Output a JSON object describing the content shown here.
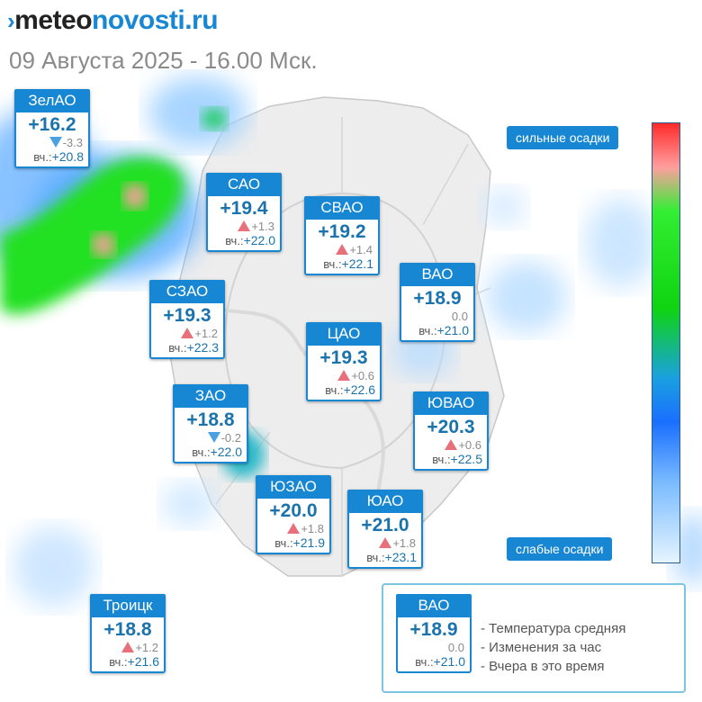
{
  "header": {
    "logo_mark": "›",
    "logo_part1": "meteo",
    "logo_part2": "novosti.ru",
    "datetime": "09 Августа 2025 - 16.00 Мск."
  },
  "districts": [
    {
      "name": "ЗелАО",
      "temp": "+16.2",
      "trend": "down",
      "change": "-3.3",
      "yesterday_label": "вч.:",
      "yesterday": "+20.8"
    },
    {
      "name": "САО",
      "temp": "+19.4",
      "trend": "up",
      "change": "+1.3",
      "yesterday_label": "вч.:",
      "yesterday": "+22.0"
    },
    {
      "name": "СВАО",
      "temp": "+19.2",
      "trend": "up",
      "change": "+1.4",
      "yesterday_label": "вч.:",
      "yesterday": "+22.1"
    },
    {
      "name": "ВАО",
      "temp": "+18.9",
      "trend": "none",
      "change": "0.0",
      "yesterday_label": "вч.:",
      "yesterday": "+21.0"
    },
    {
      "name": "СЗАО",
      "temp": "+19.3",
      "trend": "up",
      "change": "+1.2",
      "yesterday_label": "вч.:",
      "yesterday": "+22.3"
    },
    {
      "name": "ЦАО",
      "temp": "+19.3",
      "trend": "up",
      "change": "+0.6",
      "yesterday_label": "вч.:",
      "yesterday": "+22.6"
    },
    {
      "name": "ЗАО",
      "temp": "+18.8",
      "trend": "down",
      "change": "-0.2",
      "yesterday_label": "вч.:",
      "yesterday": "+22.0"
    },
    {
      "name": "ЮВАО",
      "temp": "+20.3",
      "trend": "up",
      "change": "+0.6",
      "yesterday_label": "вч.:",
      "yesterday": "+22.5"
    },
    {
      "name": "ЮЗАО",
      "temp": "+20.0",
      "trend": "up",
      "change": "+1.8",
      "yesterday_label": "вч.:",
      "yesterday": "+21.9"
    },
    {
      "name": "ЮАО",
      "temp": "+21.0",
      "trend": "up",
      "change": "+1.8",
      "yesterday_label": "вч.:",
      "yesterday": "+23.1"
    },
    {
      "name": "Троицк",
      "temp": "+18.8",
      "trend": "up",
      "change": "+1.2",
      "yesterday_label": "вч.:",
      "yesterday": "+21.6"
    }
  ],
  "scale": {
    "top_label": "сильные осадки",
    "bottom_label": "слабые осадки"
  },
  "legend": {
    "sample": {
      "name": "ВАО",
      "temp": "+18.9",
      "change": "0.0",
      "yesterday_label": "вч.:",
      "yesterday": "+21.0"
    },
    "line1": "- Температура средняя",
    "line2": "- Изменения за час",
    "line3": "- Вчера в это время"
  },
  "colors": {
    "accent": "#1787d4",
    "rise": "#e8707a",
    "fall": "#4aa0e0"
  }
}
